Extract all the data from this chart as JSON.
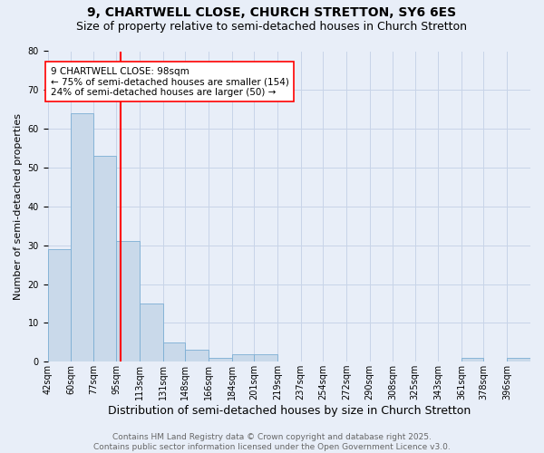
{
  "title": "9, CHARTWELL CLOSE, CHURCH STRETTON, SY6 6ES",
  "subtitle": "Size of property relative to semi-detached houses in Church Stretton",
  "xlabel": "Distribution of semi-detached houses by size in Church Stretton",
  "ylabel": "Number of semi-detached properties",
  "bin_labels": [
    "42sqm",
    "60sqm",
    "77sqm",
    "95sqm",
    "113sqm",
    "131sqm",
    "148sqm",
    "166sqm",
    "184sqm",
    "201sqm",
    "219sqm",
    "237sqm",
    "254sqm",
    "272sqm",
    "290sqm",
    "308sqm",
    "325sqm",
    "343sqm",
    "361sqm",
    "378sqm",
    "396sqm"
  ],
  "bin_edges": [
    42,
    60,
    77,
    95,
    113,
    131,
    148,
    166,
    184,
    201,
    219,
    237,
    254,
    272,
    290,
    308,
    325,
    343,
    361,
    378,
    396
  ],
  "bar_heights": [
    29,
    64,
    53,
    31,
    15,
    5,
    3,
    1,
    2,
    2,
    0,
    0,
    0,
    0,
    0,
    0,
    0,
    0,
    1,
    0,
    1
  ],
  "bar_color": "#c9d9ea",
  "bar_edge_color": "#7baed4",
  "property_size": 98,
  "vline_color": "red",
  "annotation_text": "9 CHARTWELL CLOSE: 98sqm\n← 75% of semi-detached houses are smaller (154)\n24% of semi-detached houses are larger (50) →",
  "annotation_box_color": "white",
  "annotation_box_edge_color": "red",
  "ylim": [
    0,
    80
  ],
  "yticks": [
    0,
    10,
    20,
    30,
    40,
    50,
    60,
    70,
    80
  ],
  "grid_color": "#c8d4e8",
  "background_color": "#e8eef8",
  "footer_text": "Contains HM Land Registry data © Crown copyright and database right 2025.\nContains public sector information licensed under the Open Government Licence v3.0.",
  "title_fontsize": 10,
  "subtitle_fontsize": 9,
  "xlabel_fontsize": 9,
  "ylabel_fontsize": 8,
  "tick_fontsize": 7,
  "annotation_fontsize": 7.5,
  "footer_fontsize": 6.5
}
